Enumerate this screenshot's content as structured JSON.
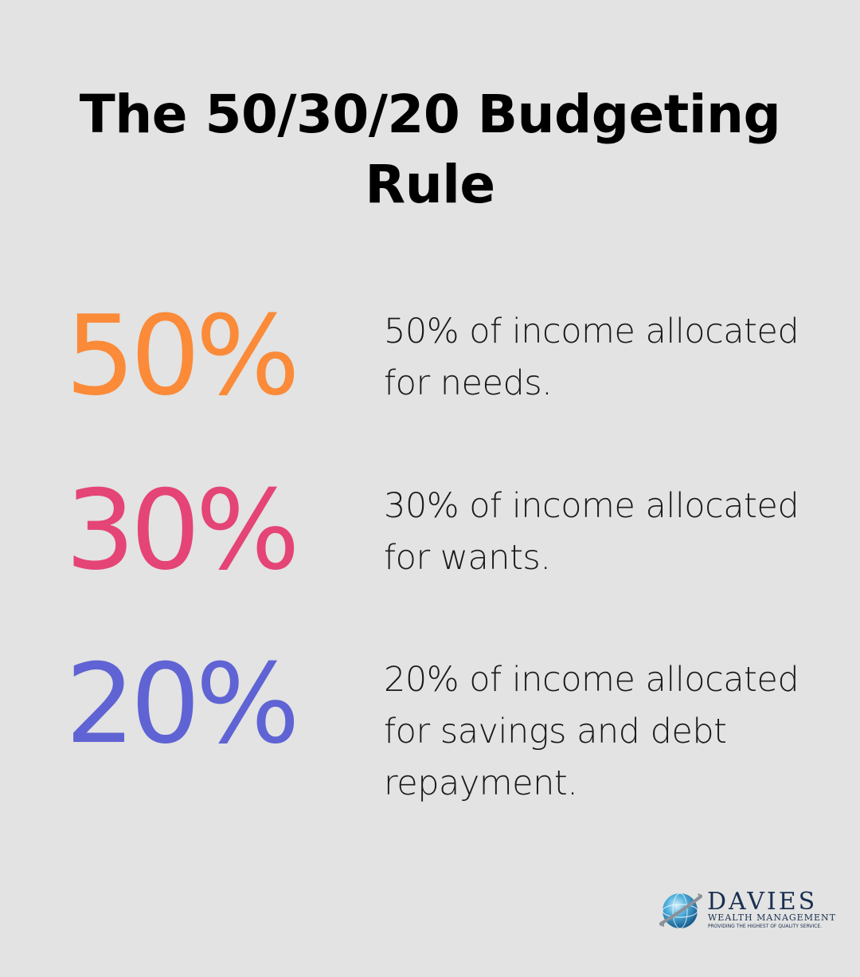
{
  "title": "The 50/30/20 Budgeting Rule",
  "stats": [
    {
      "value": "50%",
      "description": "50% of income allocated for needs.",
      "color": "#fb8a39"
    },
    {
      "value": "30%",
      "description": "30% of income allocated for wants.",
      "color": "#e54476"
    },
    {
      "value": "20%",
      "description": "20% of income allocated for savings and debt repayment.",
      "color": "#5f63d3"
    }
  ],
  "logo": {
    "icon": "globe-icon",
    "name": "DAVIES",
    "subtitle": "WEALTH MANAGEMENT",
    "tagline": "PROVIDING THE HIGHEST OF QUALITY SERVICE."
  }
}
